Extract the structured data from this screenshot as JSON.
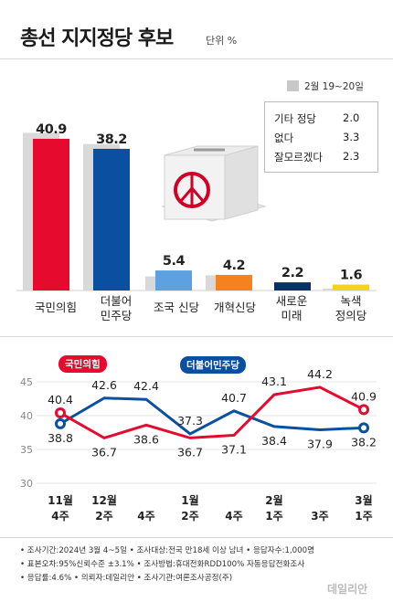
{
  "header": {
    "title": "총선 지지정당 후보",
    "unit": "단위 %"
  },
  "legend": {
    "label": "2월 19~20일"
  },
  "others": [
    {
      "name": "기타 정당",
      "value": "2.0"
    },
    {
      "name": "없다",
      "value": "3.3"
    },
    {
      "name": "잘모르겠다",
      "value": "2.3"
    }
  ],
  "tags": {
    "red": "국민의힘",
    "blue": "더불어민주당"
  },
  "footer": {
    "line1": "• 조사기간:2024년 3월 4~5일 • 조사대상:전국 만18세 이상 남녀 • 응답자수:1,000명",
    "line2": "• 표본오차:95%신뢰수준 ±3.1% • 조사방법:휴대전화RDD100% 자동응답전화조사",
    "line3": "• 응답률:4.6% • 의뢰자:데일리안 • 조사기관:여론조사공정(주)"
  },
  "brand": "데일리안",
  "colors": {
    "ppp": "#e60a2e",
    "dem": "#0b4fa0",
    "prev": "#d9d9d9",
    "rebuild": "#5ea1e0",
    "reform": "#f58220",
    "newfuture": "#0b2f6b",
    "green": "#f5d31d"
  },
  "chart_data": [
    {
      "type": "bar",
      "categories": [
        "국민의힘",
        "더불어 민주당",
        "조국 신당",
        "개혁신당",
        "새로운 미래",
        "녹색 정의당"
      ],
      "series": [
        {
          "name": "2월 19~20일",
          "values": [
            42.5,
            39.5,
            3.8,
            4.1,
            null,
            0.5
          ]
        },
        {
          "values": [
            40.9,
            38.2,
            5.4,
            4.2,
            2.2,
            1.6
          ]
        }
      ],
      "ylim": [
        0,
        45
      ]
    },
    {
      "type": "line",
      "x": [
        "11월 4주",
        "12월 2주",
        "4주",
        "1월 2주",
        "4주",
        "2월 1주",
        "3주",
        "3월 1주"
      ],
      "series": [
        {
          "name": "국민의힘",
          "values": [
            40.4,
            36.7,
            38.6,
            36.7,
            37.1,
            43.1,
            44.2,
            40.9
          ]
        },
        {
          "name": "더불어민주당",
          "values": [
            38.8,
            42.6,
            42.4,
            37.3,
            40.7,
            38.4,
            37.9,
            38.2
          ]
        }
      ],
      "yticks": [
        30,
        35,
        40,
        45
      ],
      "ylim": [
        30,
        45
      ]
    }
  ]
}
